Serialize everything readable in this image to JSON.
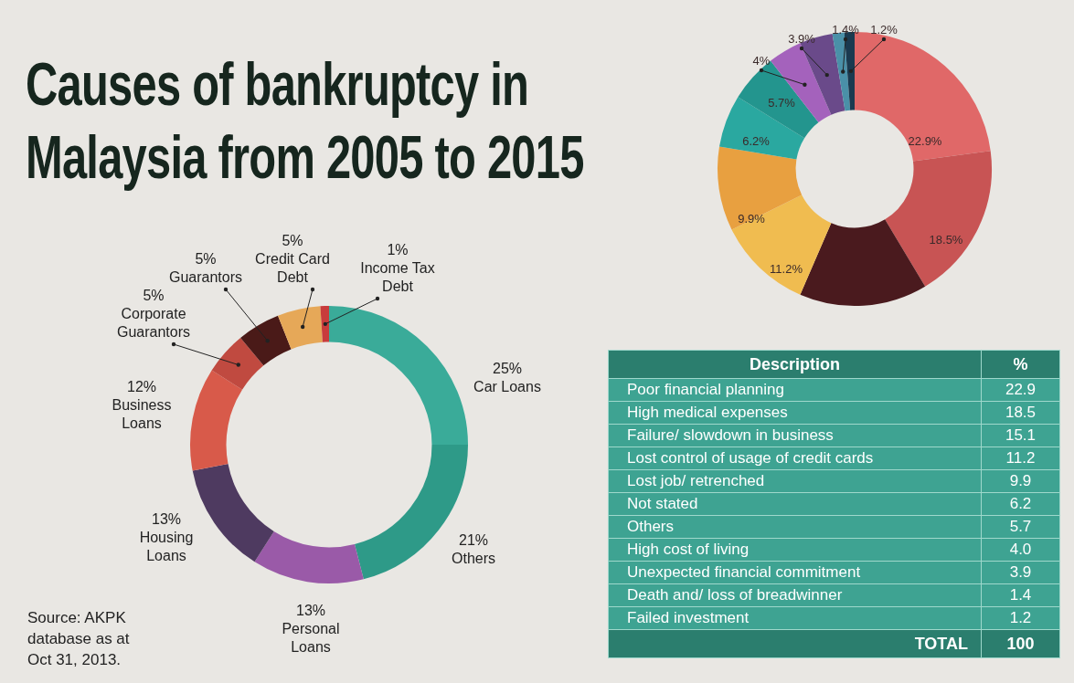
{
  "chart_data": [
    {
      "type": "donut",
      "title": "Causes of bankruptcy in Malaysia from 2005 to 2015",
      "categories": [
        "Car Loans",
        "Others",
        "Personal Loans",
        "Housing Loans",
        "Business Loans",
        "Corporate Guarantors",
        "Guarantors",
        "Credit Card Debt",
        "Income Tax Debt"
      ],
      "values": [
        25,
        21,
        13,
        13,
        12,
        5,
        5,
        5,
        1
      ],
      "value_labels": [
        "25%",
        "21%",
        "13%",
        "13%",
        "12%",
        "5%",
        "5%",
        "5%",
        "1%"
      ],
      "colors": [
        "#3aab99",
        "#2e9a88",
        "#9a5aa8",
        "#4e3a60",
        "#d85a4a",
        "#c04a40",
        "#4a1a18",
        "#e6a858",
        "#c83c3c"
      ],
      "legend": false,
      "annotations": [
        "Source: AKPK database as at Oct 31, 2013."
      ]
    },
    {
      "type": "donut",
      "categories": [
        null,
        null,
        null,
        null,
        null,
        null,
        null,
        null,
        null,
        null,
        null
      ],
      "values": [
        22.9,
        18.5,
        15.1,
        11.2,
        9.9,
        6.2,
        5.7,
        4.0,
        3.9,
        1.4,
        1.2
      ],
      "value_labels": [
        "22.9%",
        "18.5%",
        null,
        "11.2%",
        "9.9%",
        "6.2%",
        "5.7%",
        "4%",
        "3.9%",
        "1.4%",
        "1.2%"
      ],
      "colors": [
        "#e06868",
        "#c85454",
        "#4a1a1e",
        "#f0bc50",
        "#e8a040",
        "#2aa8a0",
        "#23958e",
        "#a462bc",
        "#6a4a8a",
        "#4a90a8",
        "#1a3a50"
      ],
      "legend": false
    },
    {
      "type": "other",
      "categories": [
        "Poor financial planning",
        "High medical expenses",
        "Failure/ slowdown in business",
        "Lost control of usage of credit cards",
        "Lost job/ retrenched",
        "Not stated",
        "Others",
        "High cost of living",
        "Unexpected financial commitment",
        "Death and/ loss of breadwinner",
        "Failed investment"
      ],
      "values": [
        22.9,
        18.5,
        15.1,
        11.2,
        9.9,
        6.2,
        5.7,
        4.0,
        3.9,
        1.4,
        1.2
      ],
      "value_labels": [
        "22.9",
        "18.5",
        "15.1",
        "11.2",
        "9.9",
        "6.2",
        "5.7",
        "4.0",
        "3.9",
        "1.4",
        "1.2"
      ],
      "annotations": [
        "Description",
        "%",
        "TOTAL",
        "100"
      ]
    }
  ]
}
